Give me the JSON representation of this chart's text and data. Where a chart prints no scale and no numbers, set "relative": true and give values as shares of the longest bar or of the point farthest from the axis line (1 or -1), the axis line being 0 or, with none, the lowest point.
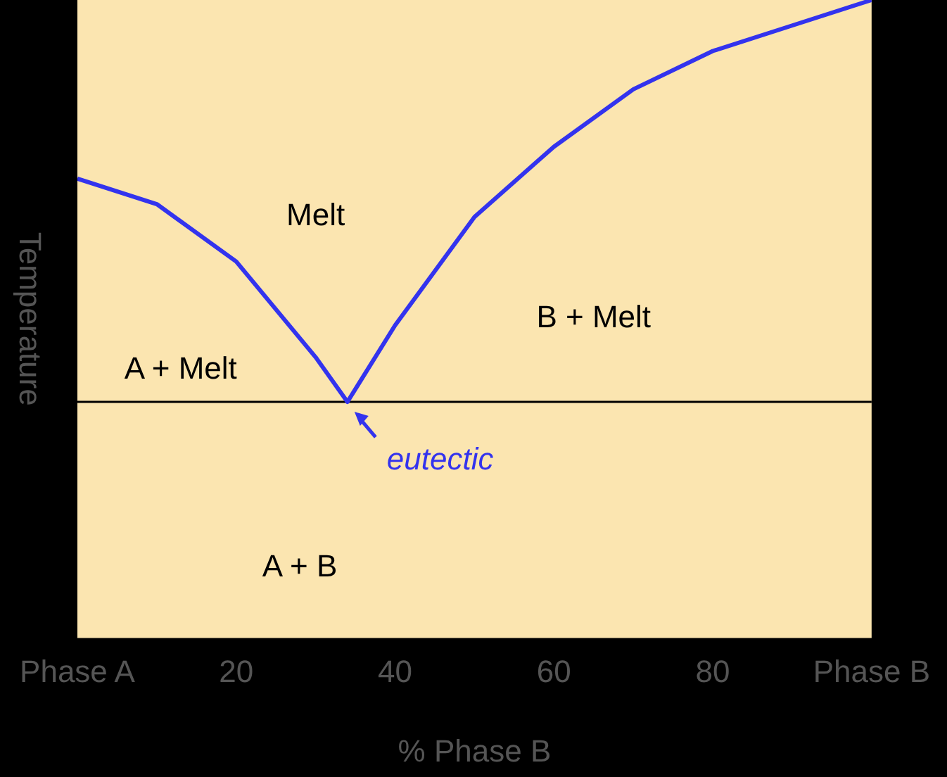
{
  "chart_data": {
    "type": "line",
    "relative": true,
    "xlabel": "% Phase B",
    "ylabel": "Temperature",
    "x": [
      0,
      10,
      20,
      30,
      34,
      40,
      50,
      60,
      70,
      80,
      90,
      100
    ],
    "series": [
      {
        "color": "#3333ee",
        "values": [
          0.72,
          0.68,
          0.59,
          0.44,
          0.37,
          0.49,
          0.66,
          0.77,
          0.86,
          0.92,
          0.96,
          1.0
        ]
      }
    ],
    "xlim": [
      0,
      100
    ],
    "xticks": [
      {
        "value": 0,
        "label": "Phase A"
      },
      20,
      40,
      60,
      80,
      {
        "value": 100,
        "label": "Phase B"
      }
    ],
    "ref_lines": [
      {
        "axis": "y",
        "value": 0.37,
        "color": "#000000"
      }
    ],
    "annotations": [
      "Melt",
      "A + Melt",
      "B + Melt",
      "A + B",
      {
        "text": "eutectic",
        "x": 34,
        "y": 0.37
      }
    ],
    "legend": false,
    "marker": "none",
    "line_style": "solid"
  }
}
